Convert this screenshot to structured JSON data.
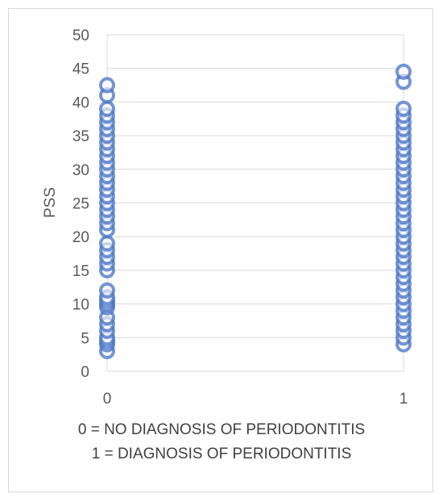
{
  "chart_data": {
    "type": "scatter",
    "title": "",
    "ylabel": "PSS",
    "xlabel_lines": [
      "0 = NO DIAGNOSIS OF PERIODONTITIS",
      "1 = DIAGNOSIS OF PERIODONTITIS"
    ],
    "xlim": [
      0,
      1
    ],
    "ylim": [
      0,
      50
    ],
    "x_ticks": [
      0,
      1
    ],
    "y_ticks": [
      0,
      5,
      10,
      15,
      20,
      25,
      30,
      35,
      40,
      45,
      50
    ],
    "grid": true,
    "legend": "none",
    "marker_color": "#4472c4",
    "series": [
      {
        "x": 0,
        "values": [
          3,
          4,
          4.5,
          5,
          6,
          7,
          8,
          9.5,
          10,
          10.5,
          11,
          12,
          15,
          16,
          17,
          18,
          19,
          21,
          22,
          23,
          24,
          25,
          26,
          27,
          28,
          29,
          30,
          31,
          32,
          33,
          34,
          35,
          36,
          37,
          38,
          39,
          41,
          42.5
        ]
      },
      {
        "x": 1,
        "values": [
          4,
          5,
          6,
          7,
          8,
          9,
          10,
          11,
          12,
          13,
          14,
          15,
          16,
          17,
          18,
          19,
          20,
          21,
          22,
          23,
          24,
          25,
          26,
          27,
          28,
          29,
          30,
          31,
          32,
          33,
          34,
          35,
          36,
          37,
          38,
          39,
          43,
          44.5
        ]
      }
    ]
  }
}
